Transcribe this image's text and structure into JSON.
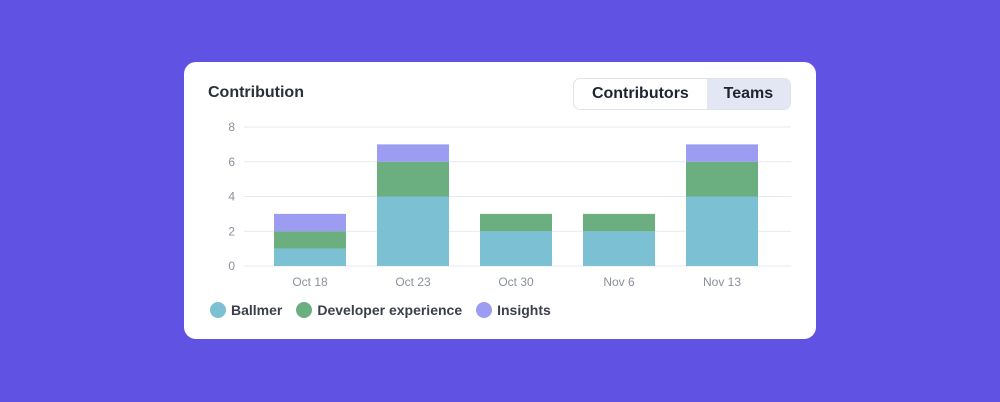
{
  "card": {
    "title": "Contribution"
  },
  "toggle": {
    "contributors_label": "Contributors",
    "teams_label": "Teams",
    "active": "Teams"
  },
  "chart_data": {
    "type": "bar",
    "stacked": true,
    "title": "Contribution",
    "categories": [
      "Oct 18",
      "Oct 23",
      "Oct 30",
      "Nov 6",
      "Nov 13"
    ],
    "series": [
      {
        "name": "Ballmer",
        "color": "#7bc0d3",
        "values": [
          1,
          4,
          2,
          2,
          4
        ]
      },
      {
        "name": "Developer experience",
        "color": "#6bae80",
        "values": [
          1,
          2,
          1,
          1,
          2
        ]
      },
      {
        "name": "Insights",
        "color": "#9c9cf2",
        "values": [
          1,
          1,
          0,
          0,
          1
        ]
      }
    ],
    "ylim": [
      0,
      8
    ],
    "yticks": [
      0,
      2,
      4,
      6,
      8
    ],
    "grid": true,
    "legend_position": "bottom-left"
  }
}
